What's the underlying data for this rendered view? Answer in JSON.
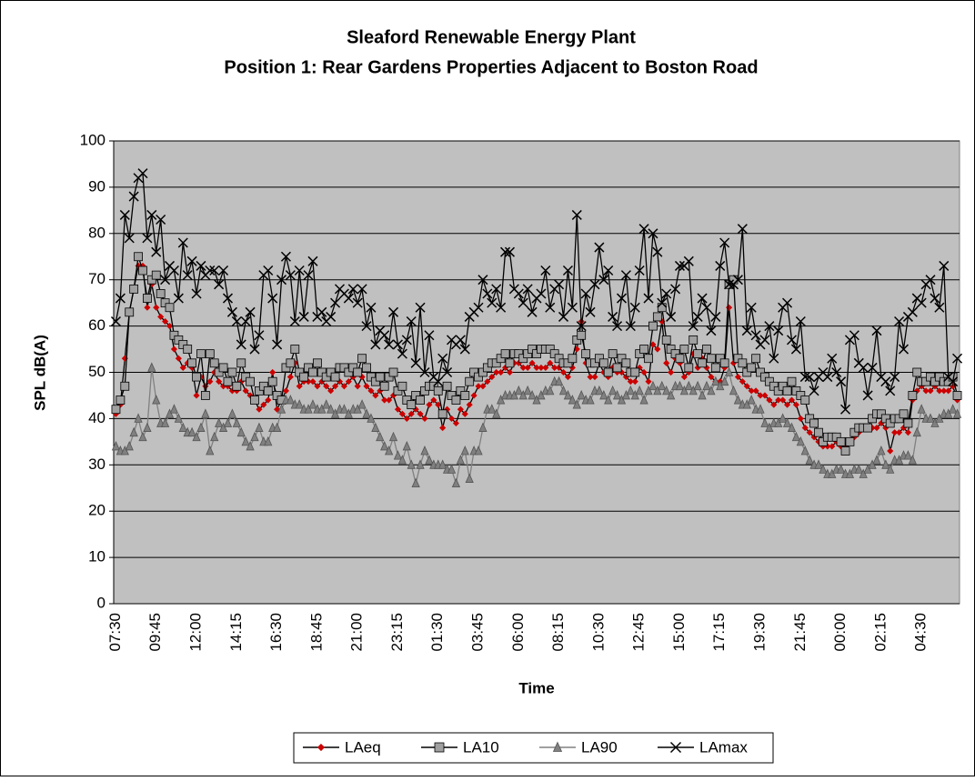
{
  "chart_data": {
    "type": "line",
    "title": "Sleaford Renewable Energy Plant",
    "subtitle": "Position 1: Rear Gardens Properties Adjacent to Boston Road",
    "x_label": "Time",
    "y_label": "SPL dB(A)",
    "ylim": [
      0,
      100
    ],
    "yticks": [
      0,
      10,
      20,
      30,
      40,
      50,
      60,
      70,
      80,
      90,
      100
    ],
    "grid": true,
    "plot_background": "#c0c0c0",
    "legend": "bottom",
    "categories": [
      "07:30",
      null,
      null,
      null,
      null,
      null,
      null,
      null,
      null,
      "09:45",
      null,
      null,
      null,
      null,
      null,
      null,
      null,
      null,
      "12:00",
      null,
      null,
      null,
      null,
      null,
      null,
      null,
      null,
      "14:15",
      null,
      null,
      null,
      null,
      null,
      null,
      null,
      null,
      "16:30",
      null,
      null,
      null,
      null,
      null,
      null,
      null,
      null,
      "18:45",
      null,
      null,
      null,
      null,
      null,
      null,
      null,
      null,
      "21:00",
      null,
      null,
      null,
      null,
      null,
      null,
      null,
      null,
      "23:15",
      null,
      null,
      null,
      null,
      null,
      null,
      null,
      null,
      "01:30",
      null,
      null,
      null,
      null,
      null,
      null,
      null,
      null,
      "03:45",
      null,
      null,
      null,
      null,
      null,
      null,
      null,
      null,
      "06:00",
      null,
      null,
      null,
      null,
      null,
      null,
      null,
      null,
      "08:15",
      null,
      null,
      null,
      null,
      null,
      null,
      null,
      null,
      "10:30",
      null,
      null,
      null,
      null,
      null,
      null,
      null,
      null,
      "12:45",
      null,
      null,
      null,
      null,
      null,
      null,
      null,
      null,
      "15:00",
      null,
      null,
      null,
      null,
      null,
      null,
      null,
      null,
      "17:15",
      null,
      null,
      null,
      null,
      null,
      null,
      null,
      null,
      "19:30",
      null,
      null,
      null,
      null,
      null,
      null,
      null,
      null,
      "21:45",
      null,
      null,
      null,
      null,
      null,
      null,
      null,
      null,
      "00:00",
      null,
      null,
      null,
      null,
      null,
      null,
      null,
      null,
      "02:15",
      null,
      null,
      null,
      null,
      null,
      null,
      null,
      null,
      "04:30",
      null,
      null,
      null,
      null,
      null,
      null,
      null,
      null
    ],
    "series": [
      {
        "name": "LAeq",
        "color": "#000000",
        "marker": "diamond",
        "marker_fill": "#cc0000",
        "values": [
          41,
          43,
          53,
          63,
          68,
          73,
          73,
          64,
          69,
          64,
          62,
          61,
          60,
          55,
          53,
          51,
          52,
          51,
          45,
          49,
          47,
          48,
          50,
          48,
          47,
          47,
          46,
          46,
          48,
          46,
          45,
          44,
          42,
          43,
          44,
          50,
          42,
          44,
          46,
          49,
          52,
          47,
          48,
          48,
          48,
          47,
          48,
          47,
          46,
          47,
          48,
          47,
          48,
          49,
          47,
          49,
          47,
          46,
          45,
          46,
          44,
          44,
          45,
          42,
          41,
          40,
          41,
          42,
          41,
          40,
          43,
          44,
          43,
          38,
          42,
          40,
          39,
          42,
          41,
          43,
          45,
          47,
          47,
          48,
          49,
          50,
          50,
          51,
          50,
          52,
          52,
          51,
          51,
          52,
          51,
          51,
          51,
          52,
          51,
          51,
          50,
          49,
          51,
          55,
          61,
          52,
          49,
          49,
          52,
          50,
          49,
          51,
          50,
          50,
          49,
          48,
          48,
          51,
          50,
          48,
          56,
          55,
          61,
          52,
          50,
          53,
          52,
          49,
          50,
          54,
          51,
          53,
          51,
          49,
          48,
          48,
          51,
          64,
          52,
          49,
          48,
          47,
          46,
          46,
          45,
          45,
          44,
          43,
          44,
          44,
          43,
          44,
          43,
          40,
          38,
          37,
          36,
          35,
          34,
          34,
          34,
          35,
          34,
          34,
          35,
          36,
          37,
          38,
          38,
          38,
          38,
          39,
          38,
          33,
          37,
          37,
          38,
          37,
          44,
          46,
          47,
          46,
          46,
          47,
          46,
          46,
          46,
          47,
          44
        ]
      },
      {
        "name": "LA10",
        "color": "#000000",
        "marker": "square",
        "marker_fill": "#a0a0a0",
        "values": [
          42,
          44,
          47,
          63,
          68,
          75,
          72,
          66,
          70,
          71,
          67,
          65,
          64,
          58,
          57,
          56,
          55,
          52,
          49,
          54,
          45,
          54,
          52,
          50,
          51,
          48,
          50,
          47,
          52,
          49,
          48,
          44,
          46,
          47,
          46,
          48,
          45,
          44,
          51,
          52,
          55,
          50,
          49,
          51,
          50,
          52,
          50,
          49,
          50,
          49,
          51,
          51,
          50,
          51,
          50,
          53,
          51,
          49,
          48,
          49,
          47,
          49,
          50,
          46,
          47,
          44,
          43,
          45,
          44,
          46,
          47,
          47,
          46,
          41,
          47,
          45,
          44,
          46,
          45,
          48,
          50,
          49,
          50,
          51,
          52,
          52,
          53,
          54,
          52,
          54,
          54,
          53,
          54,
          55,
          54,
          55,
          55,
          55,
          54,
          53,
          52,
          52,
          53,
          57,
          58,
          54,
          52,
          52,
          53,
          52,
          50,
          54,
          51,
          53,
          52,
          50,
          50,
          54,
          55,
          53,
          60,
          62,
          64,
          57,
          55,
          54,
          53,
          55,
          51,
          57,
          54,
          52,
          55,
          53,
          51,
          53,
          52,
          69,
          70,
          53,
          52,
          50,
          51,
          53,
          50,
          49,
          48,
          47,
          46,
          47,
          46,
          48,
          46,
          45,
          44,
          40,
          39,
          37,
          35,
          36,
          36,
          36,
          35,
          33,
          35,
          37,
          38,
          38,
          38,
          40,
          41,
          41,
          40,
          39,
          40,
          40,
          41,
          39,
          45,
          50,
          48,
          48,
          49,
          48,
          49,
          48,
          48,
          49,
          45
        ]
      },
      {
        "name": "LA90",
        "color": "#808080",
        "marker": "triangle",
        "marker_fill": "#808080",
        "values": [
          34,
          33,
          33,
          34,
          37,
          40,
          36,
          38,
          51,
          44,
          39,
          39,
          41,
          42,
          40,
          38,
          37,
          37,
          36,
          38,
          41,
          33,
          36,
          39,
          38,
          39,
          41,
          39,
          37,
          35,
          34,
          36,
          38,
          35,
          35,
          38,
          38,
          42,
          44,
          44,
          43,
          43,
          42,
          42,
          43,
          42,
          42,
          43,
          42,
          41,
          42,
          42,
          41,
          42,
          42,
          43,
          41,
          40,
          38,
          36,
          34,
          33,
          36,
          32,
          31,
          34,
          30,
          26,
          30,
          33,
          31,
          30,
          30,
          30,
          29,
          29,
          26,
          31,
          33,
          27,
          33,
          33,
          38,
          42,
          42,
          41,
          44,
          45,
          45,
          45,
          46,
          45,
          46,
          45,
          44,
          45,
          46,
          46,
          48,
          48,
          46,
          45,
          44,
          43,
          45,
          44,
          44,
          46,
          46,
          45,
          44,
          46,
          45,
          44,
          45,
          46,
          45,
          46,
          44,
          46,
          47,
          46,
          47,
          46,
          45,
          47,
          47,
          46,
          47,
          46,
          47,
          45,
          47,
          46,
          48,
          47,
          48,
          50,
          46,
          44,
          43,
          43,
          44,
          42,
          42,
          39,
          38,
          39,
          39,
          40,
          39,
          38,
          36,
          35,
          33,
          31,
          30,
          30,
          29,
          28,
          28,
          29,
          29,
          28,
          28,
          29,
          29,
          28,
          29,
          30,
          31,
          33,
          30,
          29,
          31,
          31,
          32,
          32,
          31,
          37,
          42,
          40,
          40,
          39,
          40,
          41,
          41,
          42,
          41
        ]
      },
      {
        "name": "LAmax",
        "color": "#000000",
        "marker": "x",
        "marker_fill": "#000000",
        "values": [
          61,
          66,
          84,
          79,
          88,
          92,
          93,
          79,
          84,
          76,
          83,
          70,
          73,
          72,
          66,
          78,
          71,
          74,
          67,
          73,
          71,
          72,
          72,
          69,
          72,
          66,
          63,
          61,
          56,
          61,
          63,
          55,
          58,
          71,
          72,
          66,
          56,
          70,
          75,
          71,
          61,
          72,
          62,
          71,
          74,
          62,
          63,
          61,
          62,
          65,
          68,
          67,
          66,
          68,
          65,
          68,
          60,
          64,
          56,
          59,
          58,
          56,
          63,
          56,
          54,
          57,
          61,
          52,
          64,
          50,
          58,
          49,
          48,
          53,
          50,
          57,
          56,
          57,
          55,
          62,
          63,
          64,
          70,
          67,
          65,
          68,
          64,
          76,
          76,
          68,
          67,
          65,
          68,
          63,
          66,
          67,
          72,
          64,
          68,
          69,
          62,
          72,
          64,
          84,
          60,
          67,
          63,
          69,
          77,
          70,
          72,
          62,
          60,
          66,
          71,
          60,
          64,
          72,
          81,
          66,
          80,
          76,
          65,
          67,
          62,
          68,
          73,
          73,
          74,
          60,
          62,
          66,
          64,
          59,
          62,
          73,
          78,
          69,
          69,
          70,
          81,
          59,
          64,
          58,
          56,
          57,
          60,
          53,
          59,
          64,
          65,
          57,
          55,
          61,
          49,
          49,
          46,
          49,
          50,
          49,
          53,
          50,
          48,
          42,
          57,
          58,
          52,
          51,
          45,
          51,
          59,
          49,
          48,
          46,
          49,
          61,
          55,
          62,
          63,
          66,
          65,
          69,
          70,
          66,
          64,
          73,
          49,
          48,
          53
        ]
      }
    ]
  }
}
